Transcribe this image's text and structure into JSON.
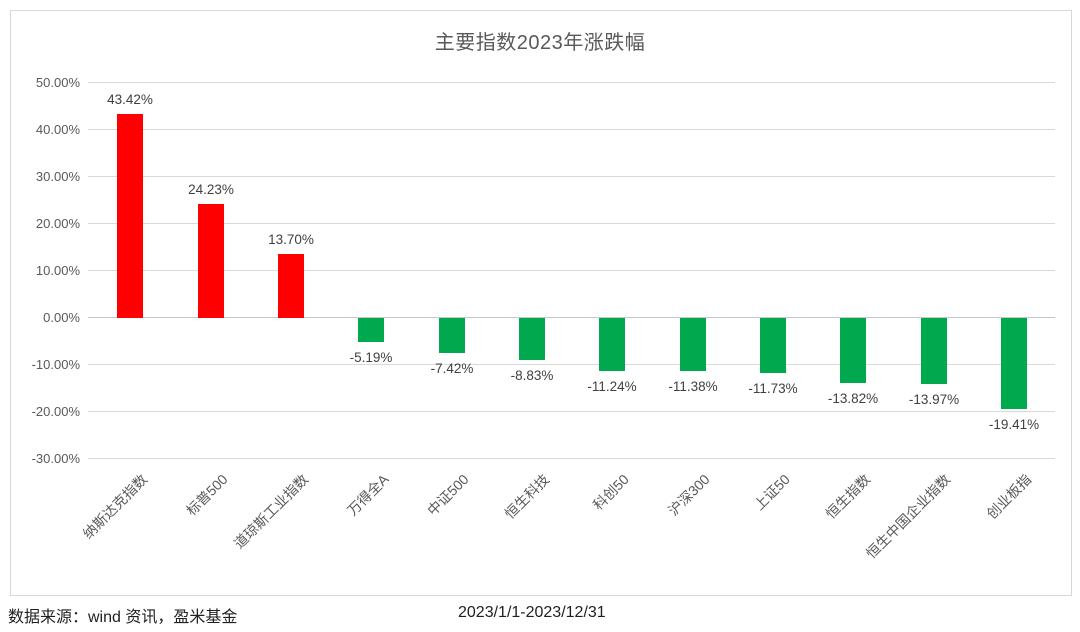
{
  "chart_data": {
    "type": "bar",
    "title": "主要指数2023年涨跌幅",
    "categories": [
      "纳斯达克指数",
      "标普500",
      "道琼斯工业指数",
      "万得全A",
      "中证500",
      "恒生科技",
      "科创50",
      "沪深300",
      "上证50",
      "恒生指数",
      "恒生中国企业指数",
      "创业板指"
    ],
    "values": [
      43.42,
      24.23,
      13.7,
      -5.19,
      -7.42,
      -8.83,
      -11.24,
      -11.38,
      -11.73,
      -13.82,
      -13.97,
      -19.41
    ],
    "value_labels": [
      "43.42%",
      "24.23%",
      "13.70%",
      "-5.19%",
      "-7.42%",
      "-8.83%",
      "-11.24%",
      "-11.38%",
      "-11.73%",
      "-13.82%",
      "-13.97%",
      "-19.41%"
    ],
    "ytick_labels": [
      "50.00%",
      "40.00%",
      "30.00%",
      "20.00%",
      "10.00%",
      "0.00%",
      "-10.00%",
      "-20.00%",
      "-30.00%"
    ],
    "ytick_values": [
      50,
      40,
      30,
      20,
      10,
      0,
      -10,
      -20,
      -30
    ],
    "ylim": [
      -30,
      50
    ],
    "xlabel": "",
    "ylabel": "",
    "grid": true,
    "legend": false,
    "bar_colors": {
      "positive": "#FF0000",
      "negative": "#00A84E"
    },
    "gridline_color": "#d9d9d9",
    "zero_line_color": "#c6c6c6"
  },
  "footer": {
    "source": "数据来源：wind 资讯，盈米基金",
    "period": "2023/1/1-2023/12/31"
  }
}
